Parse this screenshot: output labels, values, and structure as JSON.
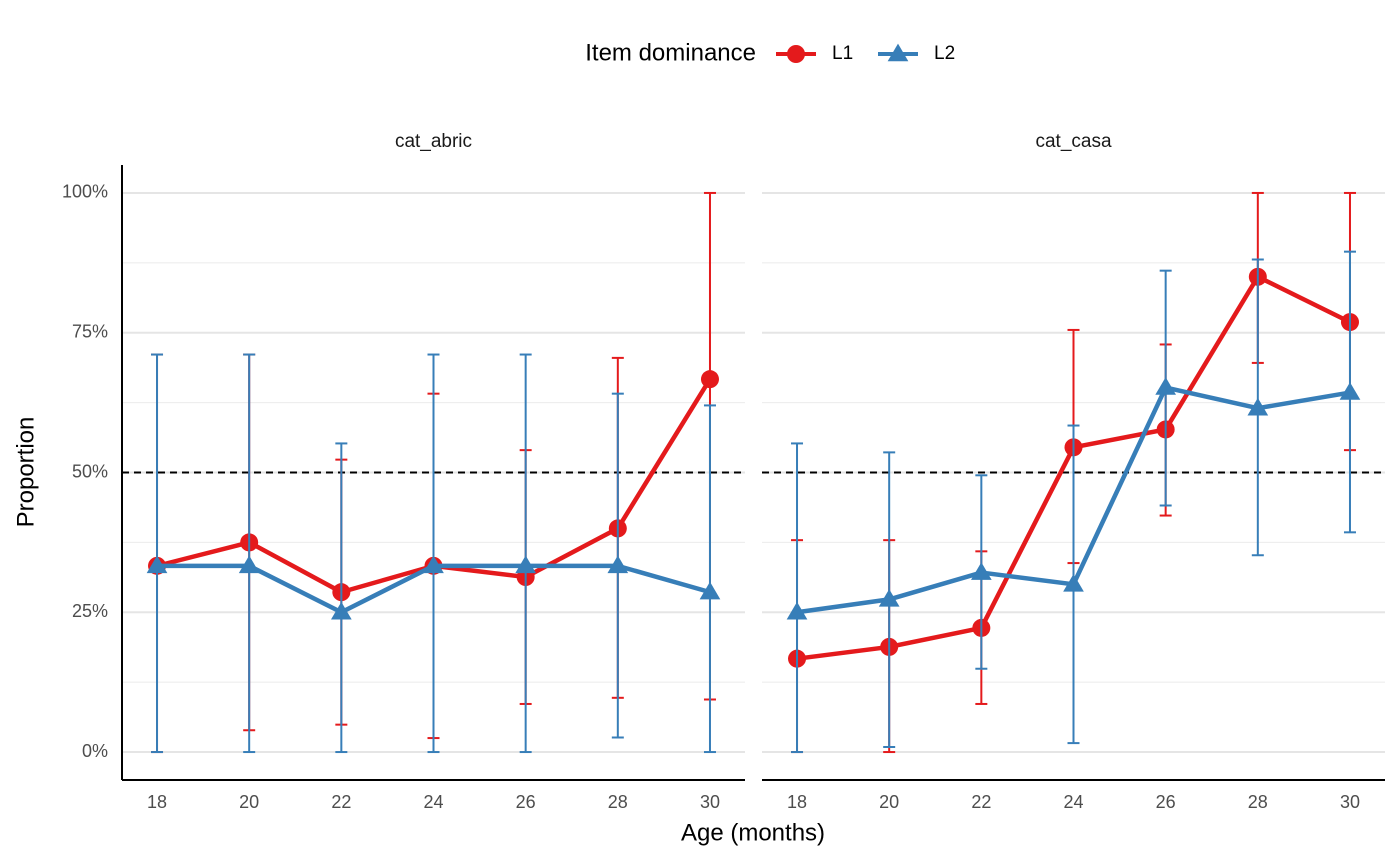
{
  "chart_data": {
    "type": "line",
    "legend_title": "Item dominance",
    "xlabel": "Age (months)",
    "ylabel": "Proportion",
    "xlim": [
      17.24,
      30.76
    ],
    "xticks": [
      18,
      20,
      22,
      24,
      26,
      28,
      30
    ],
    "ylim": [
      -5,
      105
    ],
    "yticks": [
      {
        "value": 0,
        "label": "0%"
      },
      {
        "value": 25,
        "label": "25%"
      },
      {
        "value": 50,
        "label": "50%"
      },
      {
        "value": 75,
        "label": "75%"
      },
      {
        "value": 100,
        "label": "100%"
      }
    ],
    "hline": 50,
    "grid": true,
    "panels": [
      {
        "title": "cat_abric",
        "x": [
          18,
          20,
          22,
          24,
          26,
          28,
          30
        ],
        "series": [
          {
            "name": "L1",
            "color": "#e41a1c",
            "marker": "circle",
            "values": [
              33.3,
              37.5,
              28.6,
              33.3,
              31.3,
              40,
              66.7
            ],
            "lower": [
              0,
              3.9,
              4.9,
              2.5,
              8.6,
              9.7,
              9.4
            ],
            "upper": [
              71.1,
              71.1,
              52.3,
              64.1,
              54,
              70.5,
              100
            ]
          },
          {
            "name": "L2",
            "color": "#377eb8",
            "marker": "triangle",
            "values": [
              33.3,
              33.3,
              25,
              33.3,
              33.3,
              33.3,
              28.6
            ],
            "lower": [
              0,
              0,
              0,
              0,
              0,
              2.6,
              0
            ],
            "upper": [
              71.1,
              71.1,
              55.2,
              71.1,
              71.1,
              64.1,
              62
            ]
          }
        ]
      },
      {
        "title": "cat_casa",
        "x": [
          18,
          20,
          22,
          24,
          26,
          28,
          30
        ],
        "series": [
          {
            "name": "L1",
            "color": "#e41a1c",
            "marker": "circle",
            "values": [
              16.7,
              18.8,
              22.2,
              54.5,
              57.7,
              85,
              76.9
            ],
            "lower": [
              0,
              0,
              8.6,
              33.8,
              42.3,
              69.6,
              54
            ],
            "upper": [
              37.9,
              37.9,
              35.9,
              75.5,
              72.9,
              100,
              100
            ]
          },
          {
            "name": "L2",
            "color": "#377eb8",
            "marker": "triangle",
            "values": [
              25,
              27.3,
              32.1,
              30,
              65.2,
              61.5,
              64.3
            ],
            "lower": [
              0,
              0.9,
              14.9,
              1.6,
              44.1,
              35.2,
              39.3
            ],
            "upper": [
              55.2,
              53.6,
              49.5,
              58.4,
              86.1,
              88.1,
              89.5
            ]
          }
        ]
      }
    ]
  }
}
